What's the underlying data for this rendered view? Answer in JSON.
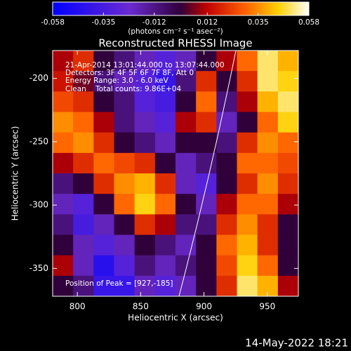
{
  "chart_data": {
    "type": "heatmap",
    "title": "Reconstructed RHESSI Image",
    "x_label": "Heliocentric X (arcsec)",
    "y_label": "Heliocentric Y (arcsec)",
    "colorbar_label": "(photons cm⁻² s⁻¹ asec⁻²)",
    "annotations": [
      "21-Apr-2014 13:01:44.000 to 13:07:44.000",
      "Detectors: 3F 4F 5F 6F 7F 8F, Att 0",
      "Energy Range: 3.0 - 6.0 keV",
      "Clean    Total counts: 9.86E+04",
      "Position of Peak = [927,-185]"
    ],
    "timestamp": "14-May-2022 18:21",
    "xlim": [
      780.5,
      974.5
    ],
    "ylim": [
      -372,
      -178
    ],
    "xticks": [
      800,
      850,
      900,
      950
    ],
    "yticks": [
      -200,
      -250,
      -300,
      -350
    ],
    "zlim": [
      -0.058,
      0.058
    ],
    "zticks": [
      -0.058,
      -0.035,
      -0.012,
      0.012,
      0.035,
      0.058
    ],
    "z": [
      [
        0.01,
        0.02,
        0.0,
        -0.01,
        -0.02,
        -0.03,
        -0.02,
        0.0,
        0.01,
        0.03,
        0.05,
        0.04
      ],
      [
        0.015,
        0.005,
        -0.01,
        -0.02,
        -0.03,
        -0.04,
        -0.01,
        0.02,
        0.0,
        0.02,
        0.05,
        0.045
      ],
      [
        0.025,
        0.02,
        0.0,
        -0.01,
        -0.03,
        -0.035,
        0.0,
        0.03,
        -0.01,
        0.01,
        0.04,
        0.05
      ],
      [
        0.035,
        0.03,
        0.01,
        -0.01,
        -0.02,
        -0.03,
        0.01,
        0.02,
        -0.02,
        0.0,
        0.03,
        0.045
      ],
      [
        0.03,
        0.035,
        0.02,
        0.0,
        -0.01,
        -0.02,
        0.0,
        0.0,
        -0.01,
        0.02,
        0.035,
        0.03
      ],
      [
        0.01,
        0.02,
        0.03,
        0.025,
        0.02,
        0.0,
        -0.02,
        -0.01,
        0.0,
        0.03,
        0.03,
        0.025
      ],
      [
        -0.01,
        0.0,
        0.02,
        0.035,
        0.04,
        0.02,
        -0.02,
        -0.03,
        0.0,
        0.02,
        0.035,
        0.02
      ],
      [
        -0.02,
        -0.03,
        0.0,
        0.03,
        0.045,
        0.03,
        0.0,
        -0.02,
        0.01,
        0.03,
        0.03,
        0.01
      ],
      [
        -0.01,
        -0.035,
        -0.02,
        0.0,
        0.02,
        0.01,
        -0.01,
        -0.01,
        0.02,
        0.035,
        0.02,
        0.0
      ],
      [
        0.0,
        -0.02,
        -0.03,
        -0.02,
        0.0,
        -0.01,
        -0.02,
        0.0,
        0.03,
        0.04,
        0.02,
        0.0
      ],
      [
        0.01,
        -0.02,
        -0.045,
        -0.03,
        -0.01,
        -0.02,
        -0.01,
        0.0,
        0.025,
        0.045,
        0.03,
        0.0
      ],
      [
        0.0,
        -0.01,
        -0.04,
        -0.04,
        -0.02,
        -0.03,
        -0.02,
        0.0,
        0.02,
        0.05,
        0.04,
        0.01
      ]
    ]
  }
}
